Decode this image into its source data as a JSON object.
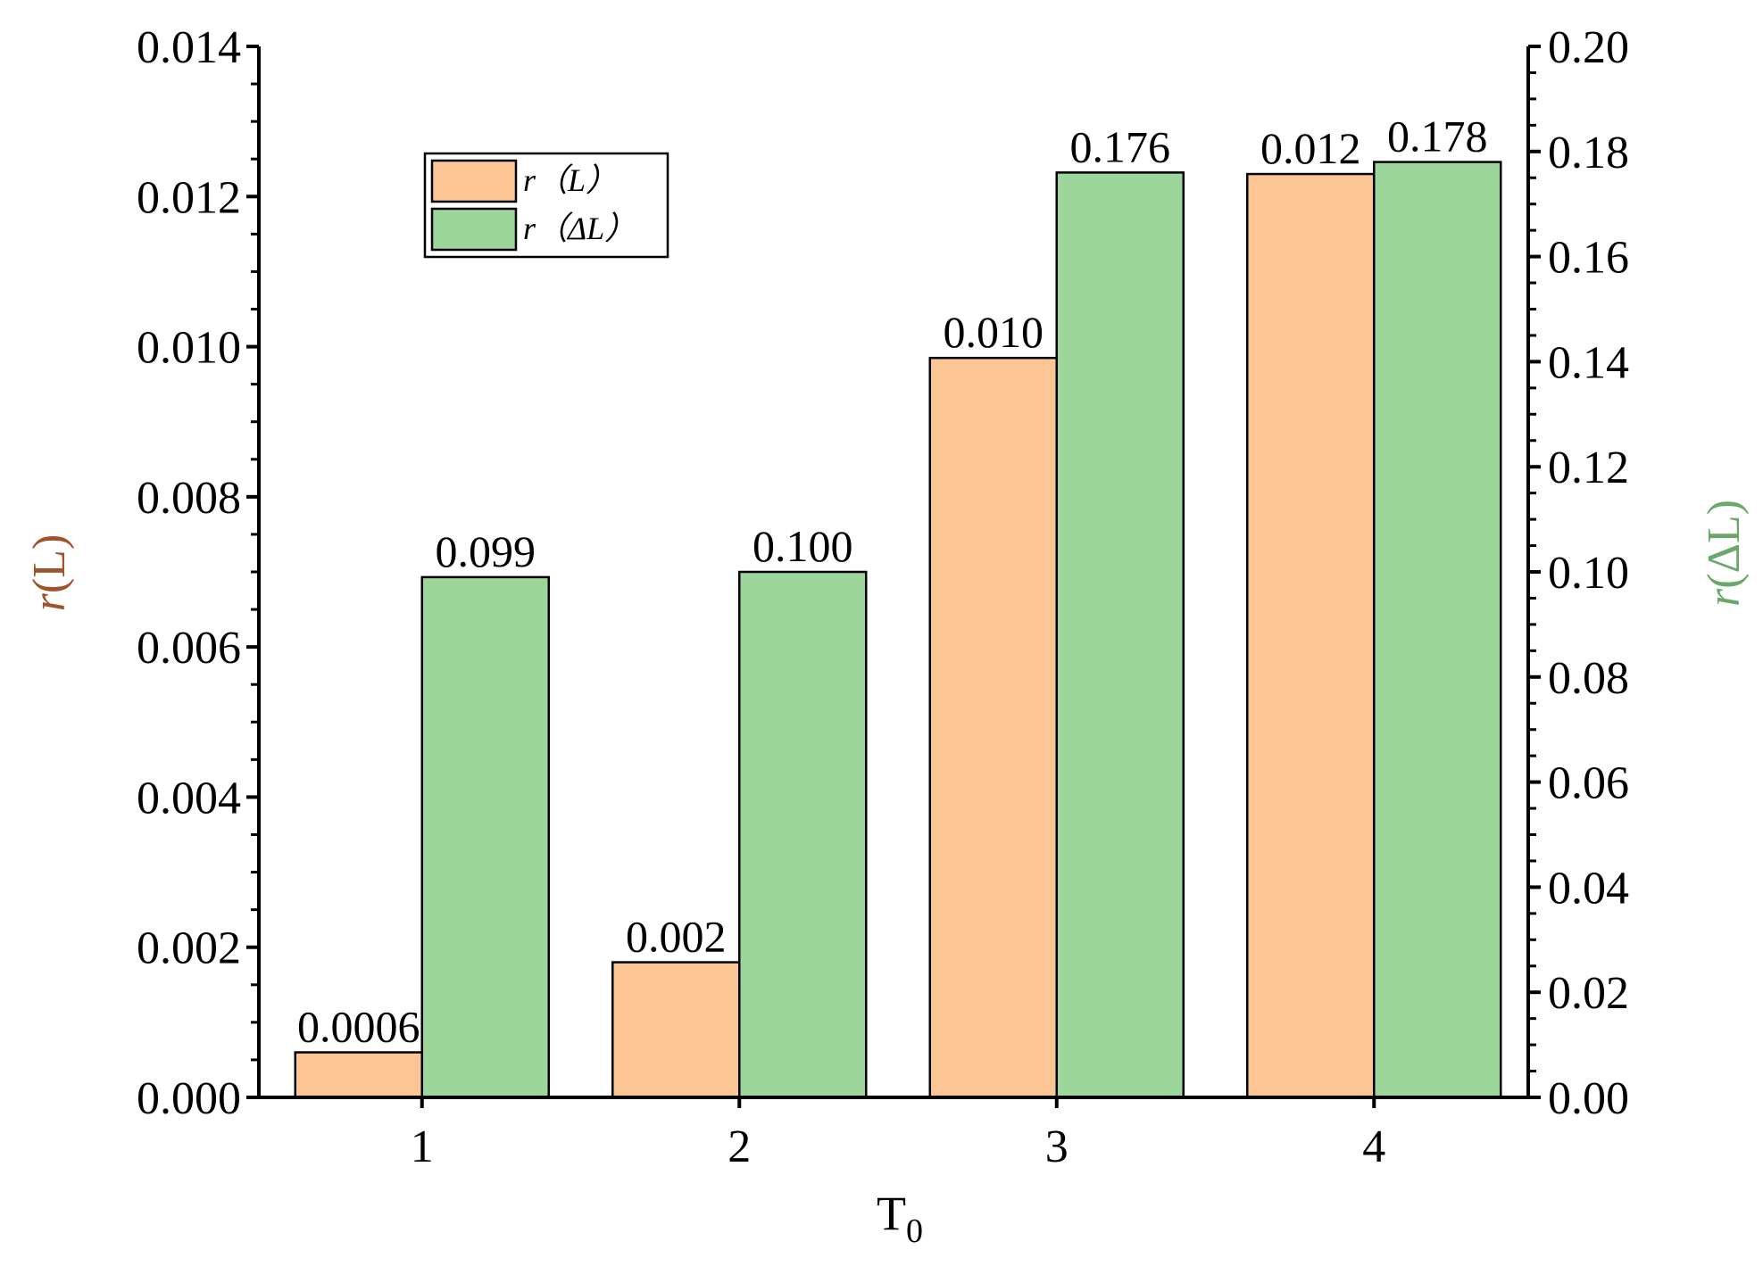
{
  "chart_data": {
    "type": "bar",
    "categories": [
      "1",
      "2",
      "3",
      "4"
    ],
    "xlabel": "T",
    "xlabel_subscript": "0",
    "left_axis": {
      "label_italic": "r",
      "label_rest": "(L)",
      "range": [
        0,
        0.014
      ],
      "ticks": [
        "0.000",
        "0.002",
        "0.004",
        "0.006",
        "0.008",
        "0.010",
        "0.012",
        "0.014"
      ],
      "label_color": "#a0522d"
    },
    "right_axis": {
      "label_italic": "r",
      "label_rest": "(ΔL)",
      "range": [
        0,
        0.2
      ],
      "ticks": [
        "0.00",
        "0.02",
        "0.04",
        "0.06",
        "0.08",
        "0.10",
        "0.12",
        "0.14",
        "0.16",
        "0.18",
        "0.20"
      ],
      "label_color": "#6aa86a"
    },
    "series": [
      {
        "name": "r（L）",
        "axis": "left",
        "values": [
          0.0006,
          0.0018,
          0.00985,
          0.0123
        ],
        "data_labels": [
          "0.0006",
          "0.002",
          "0.010",
          "0.012"
        ],
        "color": "#fcc594"
      },
      {
        "name": "r（ΔL）",
        "axis": "right",
        "values": [
          0.099,
          0.1,
          0.176,
          0.178
        ],
        "data_labels": [
          "0.099",
          "0.100",
          "0.176",
          "0.178"
        ],
        "color": "#9dd69b"
      }
    ],
    "legend": {
      "placement": "top-left",
      "entries": [
        {
          "italic": "r",
          "rest": "（L）"
        },
        {
          "italic": "r",
          "rest": "（ΔL）"
        }
      ]
    },
    "grid": false
  }
}
